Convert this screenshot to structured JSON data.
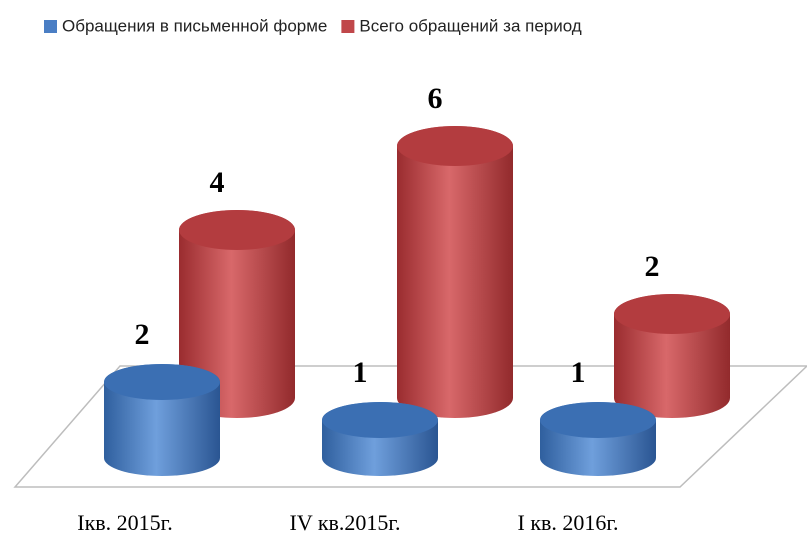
{
  "chart_data": {
    "type": "bar3d",
    "categories": [
      "Iкв. 2015г.",
      "IV кв.2015г.",
      "I кв. 2016г."
    ],
    "series": [
      {
        "name": "Обращения в письменной форме",
        "color": "#4a7ec4",
        "values": [
          2,
          1,
          1
        ]
      },
      {
        "name": "Всего обращений за период",
        "color": "#c0474a",
        "values": [
          4,
          6,
          2
        ]
      }
    ],
    "legend": "top"
  }
}
